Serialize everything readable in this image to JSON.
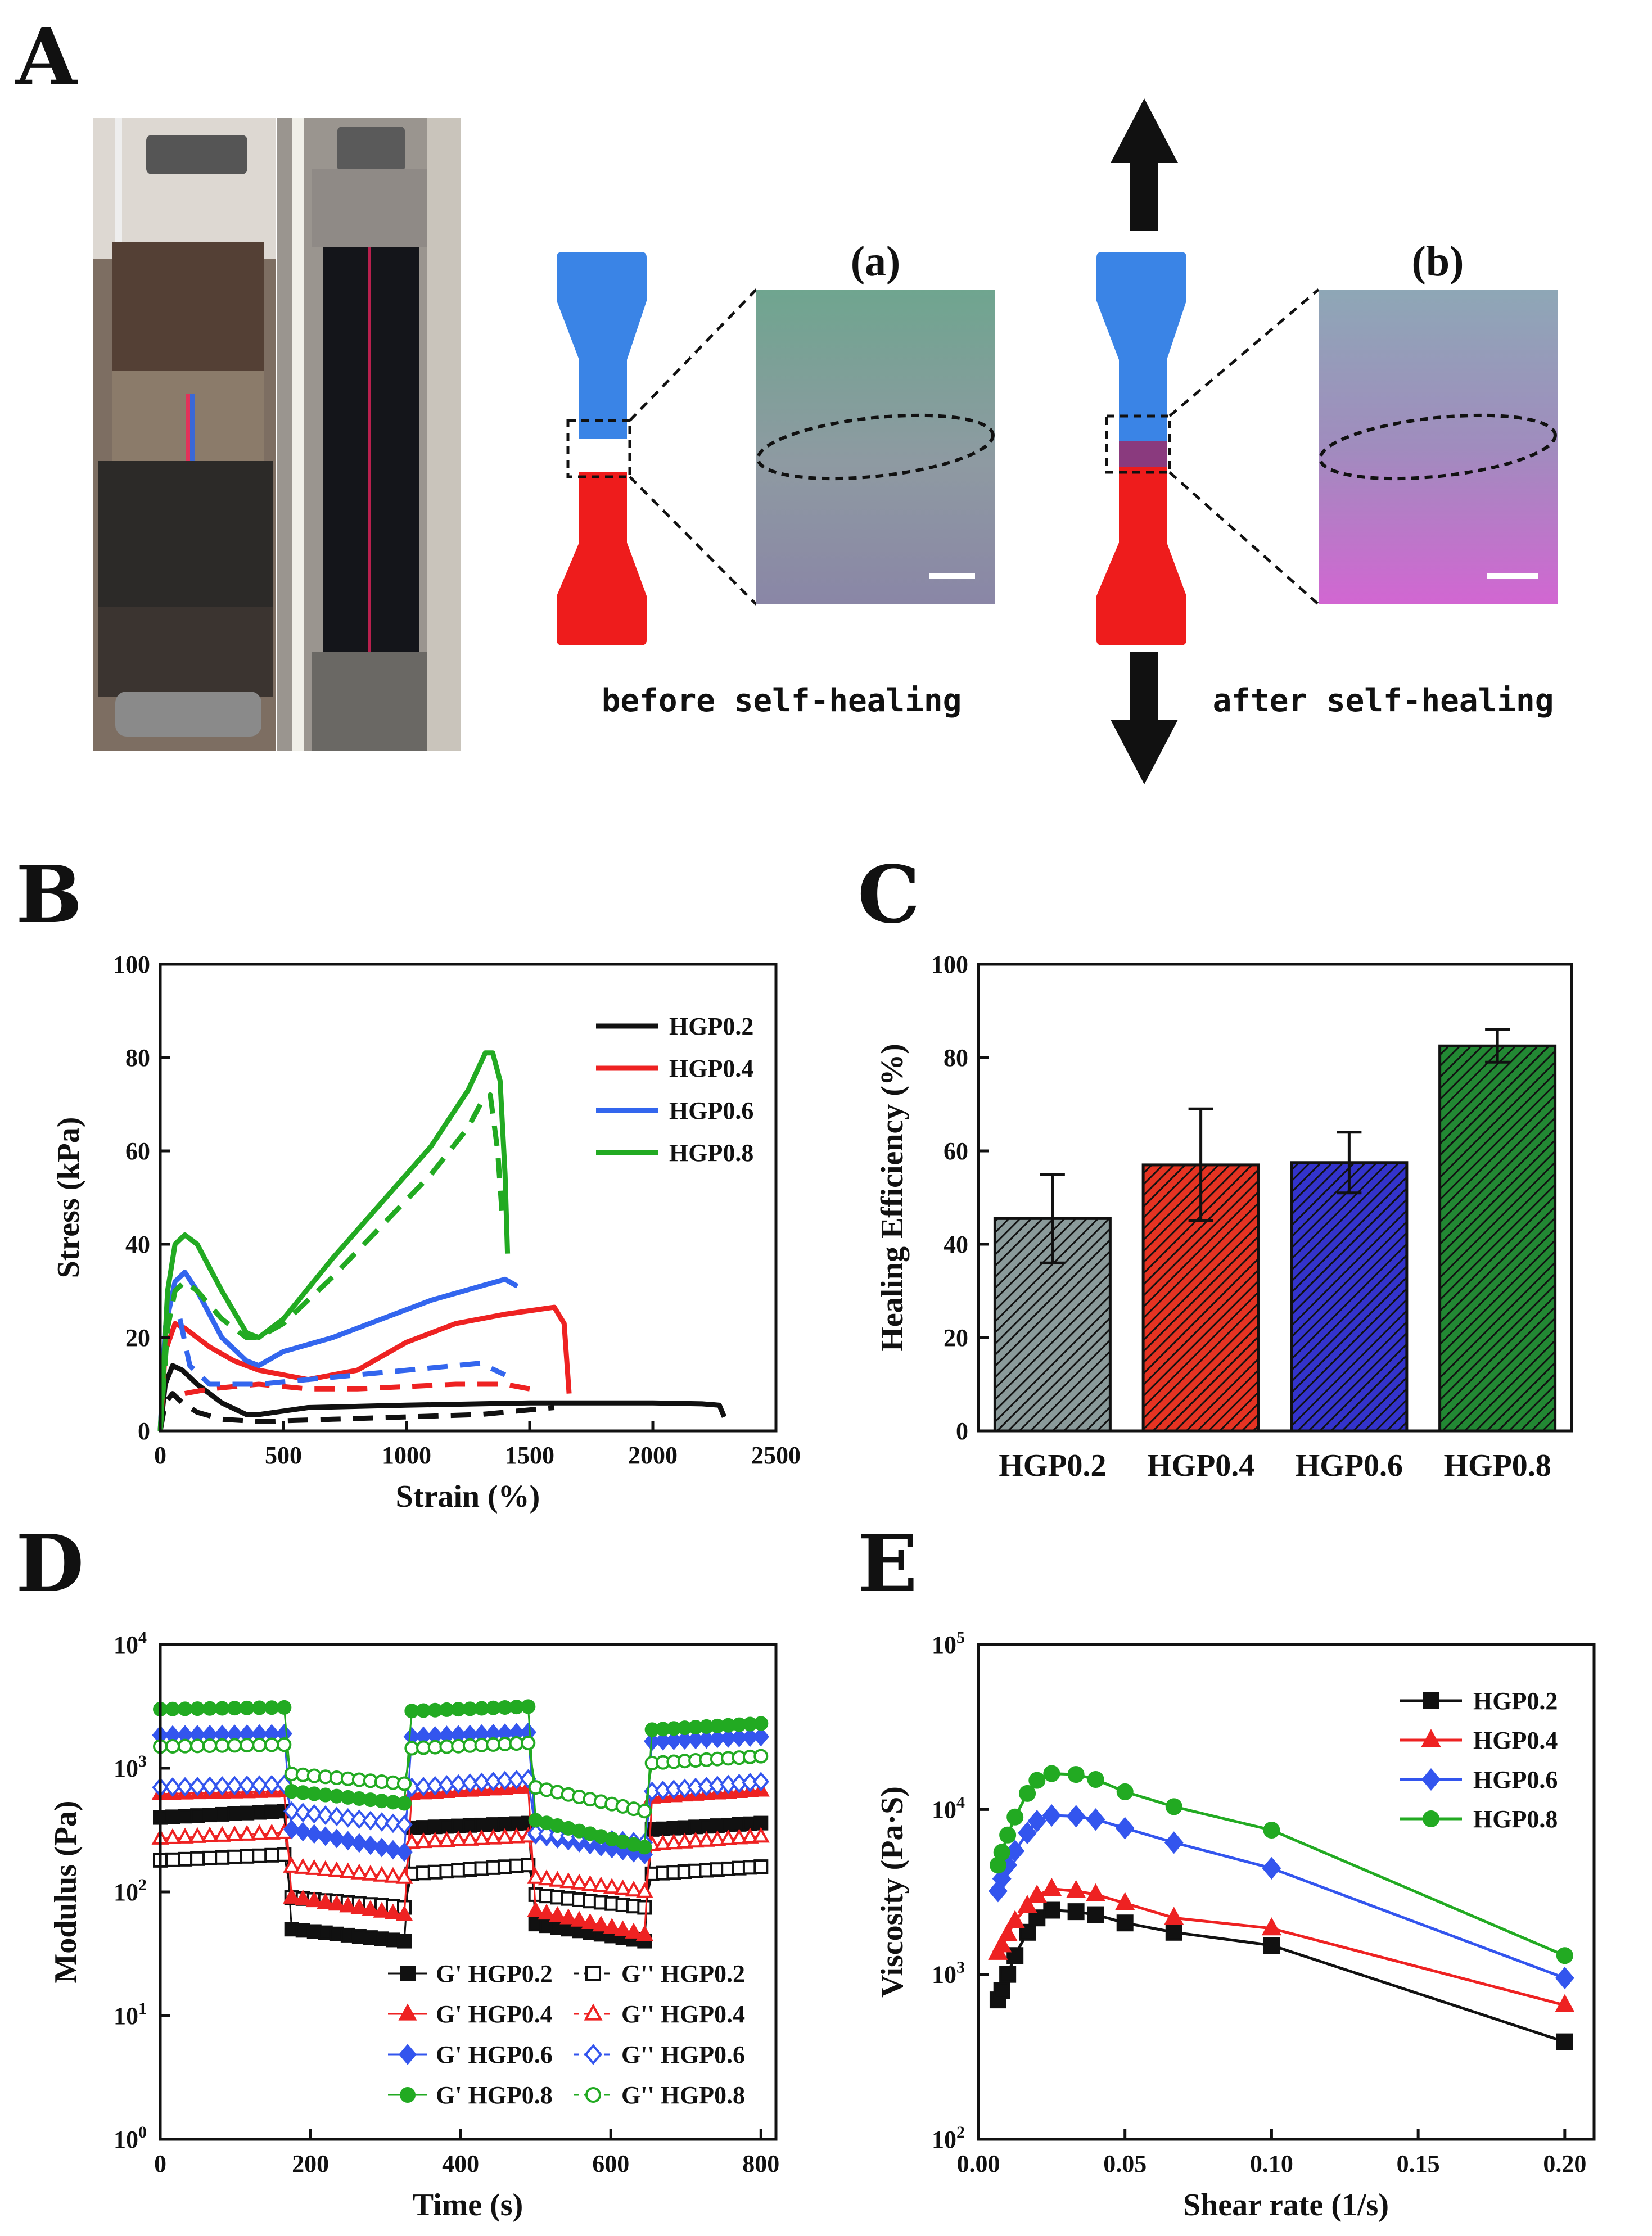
{
  "panels": {
    "A": "A",
    "B": "B",
    "C": "C",
    "D": "D",
    "E": "E"
  },
  "panelA": {
    "sub_a": "(a)",
    "sub_b": "(b)",
    "caption_before": "before self-healing",
    "caption_after": "after self-healing",
    "color_top": "#3a84e6",
    "color_bottom": "#ee1c1c"
  },
  "chart_data": [
    {
      "id": "B",
      "type": "line",
      "xlabel": "Strain (%)",
      "ylabel": "Stress (kPa)",
      "xlim": [
        0,
        2500
      ],
      "ylim": [
        0,
        100
      ],
      "xticks": [
        0,
        500,
        1000,
        1500,
        2000,
        2500
      ],
      "yticks": [
        0,
        20,
        40,
        60,
        80,
        100
      ],
      "legend": [
        "HGP0.2",
        "HGP0.4",
        "HGP0.6",
        "HGP0.8"
      ],
      "series": [
        {
          "name": "HGP0.2",
          "color": "#111111",
          "style": "solid",
          "x": [
            0,
            20,
            50,
            90,
            150,
            250,
            350,
            400,
            600,
            1000,
            1500,
            2000,
            2200,
            2270,
            2290
          ],
          "y": [
            0,
            10,
            14,
            13,
            10,
            6,
            3.5,
            3.5,
            5,
            5.5,
            6,
            6,
            5.8,
            5.5,
            3
          ]
        },
        {
          "name": "HGP0.2",
          "color": "#111111",
          "style": "dashed",
          "x": [
            0,
            20,
            50,
            90,
            150,
            250,
            400,
            700,
            1000,
            1300,
            1600
          ],
          "y": [
            0,
            6,
            8,
            6,
            4,
            2.5,
            2,
            2.5,
            3,
            3.5,
            5
          ]
        },
        {
          "name": "HGP0.4",
          "color": "#ee2222",
          "style": "solid",
          "x": [
            0,
            20,
            60,
            100,
            200,
            300,
            400,
            600,
            800,
            1000,
            1200,
            1400,
            1600,
            1640,
            1660
          ],
          "y": [
            0,
            17,
            23,
            22,
            18,
            15,
            13,
            11,
            13,
            19,
            23,
            25,
            26.5,
            23,
            8
          ]
        },
        {
          "name": "HGP0.4",
          "color": "#ee2222",
          "style": "dashed",
          "x": [
            100,
            200,
            400,
            600,
            800,
            1000,
            1200,
            1400,
            1500
          ],
          "y": [
            8,
            9,
            10,
            9,
            9,
            9.5,
            10,
            10,
            9
          ]
        },
        {
          "name": "HGP0.6",
          "color": "#3366ee",
          "style": "solid",
          "x": [
            0,
            20,
            60,
            100,
            150,
            250,
            350,
            400,
            500,
            700,
            900,
            1100,
            1300,
            1400,
            1450
          ],
          "y": [
            0,
            22,
            32,
            34,
            30,
            20,
            15,
            14,
            17,
            20,
            24,
            28,
            31,
            32.5,
            31
          ]
        },
        {
          "name": "HGP0.6",
          "color": "#3366ee",
          "style": "dashed",
          "x": [
            80,
            120,
            200,
            300,
            400,
            600,
            800,
            1000,
            1200,
            1300,
            1400
          ],
          "y": [
            24,
            14,
            10,
            10,
            10,
            11,
            12,
            13,
            14,
            14.5,
            12
          ]
        },
        {
          "name": "HGP0.8",
          "color": "#22aa22",
          "style": "solid",
          "x": [
            0,
            30,
            60,
            100,
            150,
            250,
            350,
            400,
            500,
            700,
            900,
            1100,
            1250,
            1320,
            1350,
            1380,
            1400,
            1410
          ],
          "y": [
            0,
            30,
            40,
            42,
            40,
            30,
            21,
            20,
            24,
            37,
            49,
            61,
            73,
            81,
            81,
            75,
            55,
            38
          ]
        },
        {
          "name": "HGP0.8",
          "color": "#22aa22",
          "style": "dashed",
          "x": [
            0,
            30,
            60,
            100,
            150,
            250,
            350,
            400,
            500,
            700,
            900,
            1100,
            1250,
            1300,
            1340,
            1370,
            1390
          ],
          "y": [
            0,
            22,
            30,
            32,
            30,
            24,
            20,
            20,
            23,
            33,
            44,
            55,
            65,
            70,
            72,
            60,
            45
          ]
        }
      ]
    },
    {
      "id": "C",
      "type": "bar",
      "ylabel": "Healing Efficiency (%)",
      "xlabel": "",
      "ylim": [
        0,
        100
      ],
      "yticks": [
        0,
        20,
        40,
        60,
        80,
        100
      ],
      "categories": [
        "HGP0.2",
        "HGP0.4",
        "HGP0.6",
        "HGP0.8"
      ],
      "values": [
        45.5,
        57,
        57.5,
        82.5
      ],
      "errors": [
        9.5,
        12,
        6.5,
        3.5
      ],
      "colors": [
        "#8a9a9a",
        "#e53322",
        "#3333cc",
        "#228833"
      ]
    },
    {
      "id": "D",
      "type": "scatter",
      "xlabel": "Time (s)",
      "ylabel": "Modulus (Pa)",
      "xlim": [
        0,
        820
      ],
      "ylog": true,
      "ylim_exp": [
        0,
        4
      ],
      "xticks": [
        0,
        200,
        400,
        600,
        800
      ],
      "yticks_exp": [
        0,
        1,
        2,
        3,
        4
      ],
      "ytick_base": "10",
      "legend": [
        "G' HGP0.2",
        "G'' HGP0.2",
        "G' HGP0.4",
        "G'' HGP0.4",
        "G' HGP0.6",
        "G'' HGP0.6",
        "G' HGP0.8",
        "G'' HGP0.8"
      ],
      "series": [
        {
          "name": "G' HGP0.2",
          "color": "#111111",
          "filled": true,
          "marker": "square",
          "segments": [
            [
              400,
              450
            ],
            [
              50,
              40
            ],
            [
              330,
              360
            ],
            [
              55,
              40
            ],
            [
              320,
              360
            ]
          ]
        },
        {
          "name": "G'' HGP0.2",
          "color": "#111111",
          "filled": false,
          "marker": "square",
          "segments": [
            [
              180,
              200
            ],
            [
              90,
              75
            ],
            [
              140,
              165
            ],
            [
              95,
              75
            ],
            [
              140,
              160
            ]
          ]
        },
        {
          "name": "G' HGP0.4",
          "color": "#ee2222",
          "filled": true,
          "marker": "triangle",
          "segments": [
            [
              620,
              650
            ],
            [
              90,
              65
            ],
            [
              620,
              700
            ],
            [
              70,
              45
            ],
            [
              580,
              660
            ]
          ]
        },
        {
          "name": "G'' HGP0.4",
          "color": "#ee2222",
          "filled": false,
          "marker": "triangle",
          "segments": [
            [
              270,
              300
            ],
            [
              160,
              130
            ],
            [
              250,
              280
            ],
            [
              130,
              100
            ],
            [
              240,
              280
            ]
          ]
        },
        {
          "name": "G' HGP0.6",
          "color": "#3355ee",
          "filled": true,
          "marker": "diamond",
          "segments": [
            [
              1850,
              1900
            ],
            [
              320,
              210
            ],
            [
              1800,
              1950
            ],
            [
              290,
              200
            ],
            [
              1650,
              1800
            ]
          ]
        },
        {
          "name": "G'' HGP0.6",
          "color": "#3355ee",
          "filled": false,
          "marker": "diamond",
          "segments": [
            [
              700,
              740
            ],
            [
              450,
              350
            ],
            [
              700,
              820
            ],
            [
              300,
              250
            ],
            [
              650,
              780
            ]
          ]
        },
        {
          "name": "G' HGP0.8",
          "color": "#22aa22",
          "filled": true,
          "marker": "circle",
          "segments": [
            [
              3000,
              3100
            ],
            [
              650,
              520
            ],
            [
              2900,
              3150
            ],
            [
              380,
              230
            ],
            [
              2050,
              2300
            ]
          ]
        },
        {
          "name": "G'' HGP0.8",
          "color": "#22aa22",
          "filled": false,
          "marker": "circle",
          "segments": [
            [
              1500,
              1550
            ],
            [
              900,
              750
            ],
            [
              1450,
              1600
            ],
            [
              700,
              450
            ],
            [
              1100,
              1250
            ]
          ]
        }
      ],
      "time_segments": [
        [
          0,
          165
        ],
        [
          175,
          325
        ],
        [
          335,
          490
        ],
        [
          500,
          645
        ],
        [
          655,
          800
        ]
      ]
    },
    {
      "id": "E",
      "type": "line",
      "xlabel": "Shear rate (1/s)",
      "ylabel": "Viscosity (Pa·S)",
      "xlim": [
        0,
        0.21
      ],
      "ylog": true,
      "ylim_exp": [
        2,
        5
      ],
      "xticks": [
        0.0,
        0.05,
        0.1,
        0.15,
        0.2
      ],
      "xticklabels": [
        "0.00",
        "0.05",
        "0.10",
        "0.15",
        "0.20"
      ],
      "yticks_exp": [
        2,
        3,
        4,
        5
      ],
      "ytick_base": "10",
      "legend": [
        "HGP0.2",
        "HGP0.4",
        "HGP0.6",
        "HGP0.8"
      ],
      "x": [
        0.0067,
        0.008,
        0.01,
        0.0125,
        0.0167,
        0.02,
        0.025,
        0.0333,
        0.04,
        0.05,
        0.0667,
        0.1,
        0.2
      ],
      "series": [
        {
          "name": "HGP0.2",
          "color": "#111111",
          "marker": "square",
          "values": [
            700,
            800,
            1000,
            1300,
            1800,
            2200,
            2450,
            2400,
            2300,
            2050,
            1800,
            1500,
            390
          ]
        },
        {
          "name": "HGP0.4",
          "color": "#ee2222",
          "marker": "triangle",
          "values": [
            1350,
            1500,
            1750,
            2100,
            2600,
            3000,
            3300,
            3200,
            3050,
            2700,
            2200,
            1900,
            650
          ]
        },
        {
          "name": "HGP0.6",
          "color": "#3355ee",
          "marker": "diamond",
          "values": [
            3200,
            3800,
            4600,
            5600,
            7200,
            8500,
            9200,
            9100,
            8700,
            7700,
            6300,
            4400,
            950
          ]
        },
        {
          "name": "HGP0.8",
          "color": "#22aa22",
          "marker": "circle",
          "values": [
            4600,
            5500,
            7000,
            9000,
            12500,
            15000,
            16500,
            16300,
            15200,
            12800,
            10400,
            7500,
            1300
          ]
        }
      ]
    }
  ]
}
